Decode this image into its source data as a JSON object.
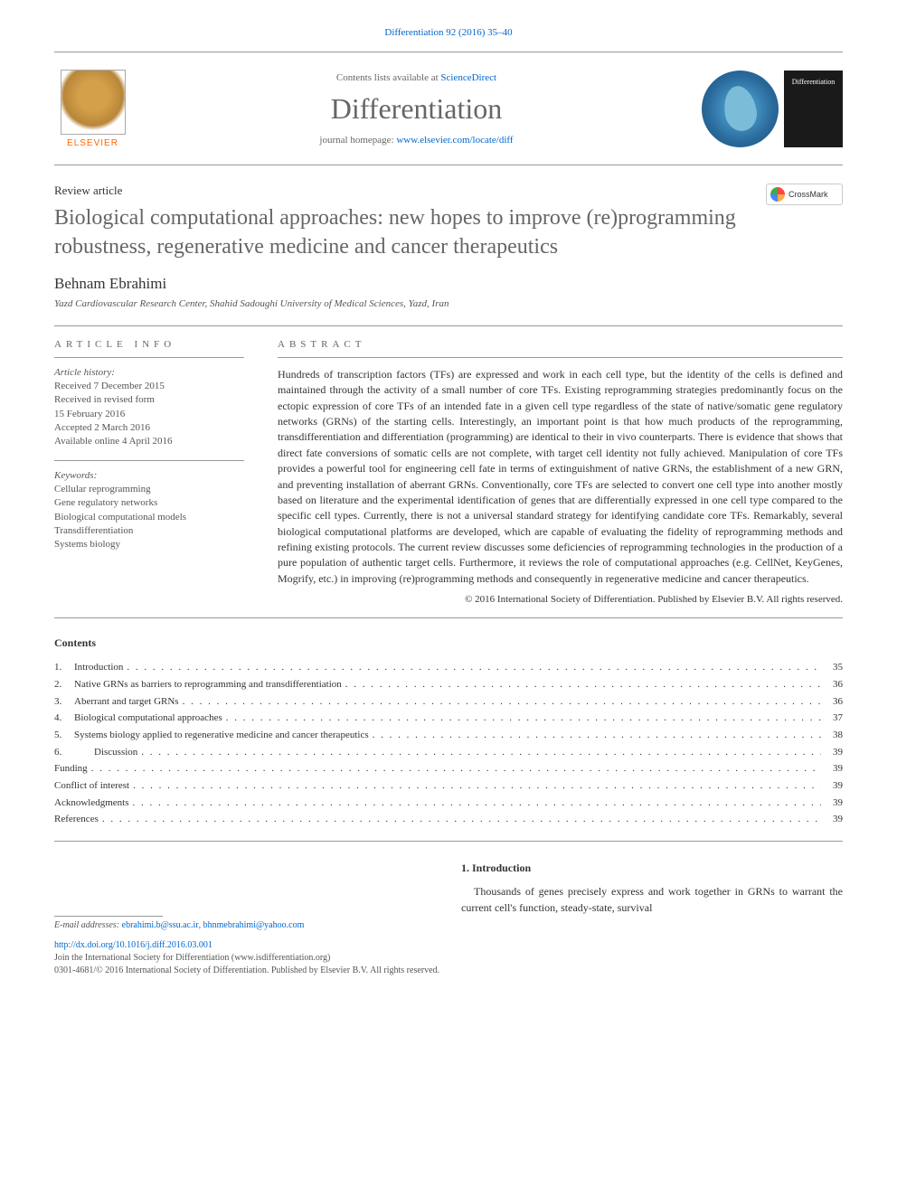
{
  "top_citation": "Differentiation 92 (2016) 35–40",
  "header": {
    "contents_prefix": "Contents lists available at ",
    "contents_link": "ScienceDirect",
    "journal_title": "Differentiation",
    "homepage_prefix": "journal homepage: ",
    "homepage_link": "www.elsevier.com/locate/diff",
    "elsevier_label": "ELSEVIER",
    "cover_label": "Differentiation"
  },
  "crossmark_label": "CrossMark",
  "article": {
    "type": "Review article",
    "title": "Biological computational approaches: new hopes to improve (re)programming robustness, regenerative medicine and cancer therapeutics",
    "author": "Behnam Ebrahimi",
    "affiliation": "Yazd Cardiovascular Research Center, Shahid Sadoughi University of Medical Sciences, Yazd, Iran"
  },
  "info": {
    "header": "ARTICLE INFO",
    "history_label": "Article history:",
    "history": [
      "Received 7 December 2015",
      "Received in revised form",
      "15 February 2016",
      "Accepted 2 March 2016",
      "Available online 4 April 2016"
    ],
    "keywords_label": "Keywords:",
    "keywords": [
      "Cellular reprogramming",
      "Gene regulatory networks",
      "Biological computational models",
      "Transdifferentiation",
      "Systems biology"
    ]
  },
  "abstract": {
    "header": "ABSTRACT",
    "text": "Hundreds of transcription factors (TFs) are expressed and work in each cell type, but the identity of the cells is defined and maintained through the activity of a small number of core TFs. Existing reprogramming strategies predominantly focus on the ectopic expression of core TFs of an intended fate in a given cell type regardless of the state of native/somatic gene regulatory networks (GRNs) of the starting cells. Interestingly, an important point is that how much products of the reprogramming, transdifferentiation and differentiation (programming) are identical to their in vivo counterparts. There is evidence that shows that direct fate conversions of somatic cells are not complete, with target cell identity not fully achieved. Manipulation of core TFs provides a powerful tool for engineering cell fate in terms of extinguishment of native GRNs, the establishment of a new GRN, and preventing installation of aberrant GRNs. Conventionally, core TFs are selected to convert one cell type into another mostly based on literature and the experimental identification of genes that are differentially expressed in one cell type compared to the specific cell types. Currently, there is not a universal standard strategy for identifying candidate core TFs. Remarkably, several biological computational platforms are developed, which are capable of evaluating the fidelity of reprogramming methods and refining existing protocols. The current review discusses some deficiencies of reprogramming technologies in the production of a pure population of authentic target cells. Furthermore, it reviews the role of computational approaches (e.g. CellNet, KeyGenes, Mogrify, etc.) in improving (re)programming methods and consequently in regenerative medicine and cancer therapeutics.",
    "copyright": "© 2016 International Society of Differentiation. Published by Elsevier B.V. All rights reserved."
  },
  "contents": {
    "header": "Contents",
    "items": [
      {
        "num": "1.",
        "label": "Introduction",
        "page": "35"
      },
      {
        "num": "2.",
        "label": "Native GRNs as barriers to reprogramming and transdifferentiation",
        "page": "36"
      },
      {
        "num": "3.",
        "label": "Aberrant and target GRNs",
        "page": "36"
      },
      {
        "num": "4.",
        "label": "Biological computational approaches",
        "page": "37"
      },
      {
        "num": "5.",
        "label": "Systems biology applied to regenerative medicine and cancer therapeutics",
        "page": "38"
      },
      {
        "num": "6.",
        "label": "Discussion",
        "page": "39",
        "indent": true
      },
      {
        "num": "",
        "label": "Funding",
        "page": "39"
      },
      {
        "num": "",
        "label": "Conflict of interest",
        "page": "39"
      },
      {
        "num": "",
        "label": "Acknowledgments",
        "page": "39"
      },
      {
        "num": "",
        "label": "References",
        "page": "39"
      }
    ]
  },
  "body": {
    "section_heading": "1. Introduction",
    "paragraph": "Thousands of genes precisely express and work together in GRNs to warrant the current cell's function, steady-state, survival"
  },
  "footnote": {
    "label": "E-mail addresses: ",
    "email1": "ebrahimi.b@ssu.ac.ir",
    "sep": ", ",
    "email2": "bhnmebrahimi@yahoo.com"
  },
  "bottom": {
    "doi": "http://dx.doi.org/10.1016/j.diff.2016.03.001",
    "join_line": "Join the International Society for Differentiation (www.isdifferentiation.org)",
    "issn_line": "0301-4681/© 2016 International Society of Differentiation. Published by Elsevier B.V. All rights reserved."
  },
  "colors": {
    "link": "#0066cc",
    "title_grey": "#666666",
    "text": "#333333",
    "rule": "#999999",
    "elsevier_orange": "#ff6600"
  }
}
